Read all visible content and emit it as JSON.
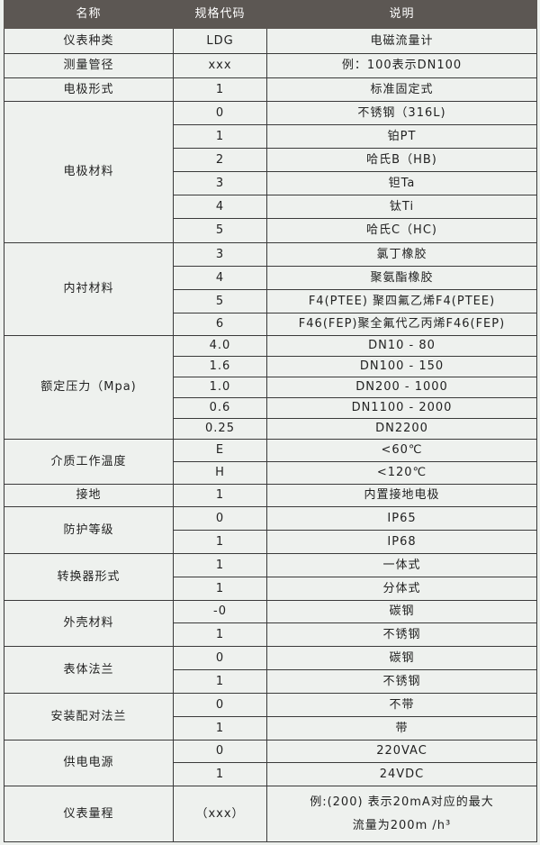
{
  "header": {
    "name": "名称",
    "code": "规格代码",
    "desc": "说明"
  },
  "colors": {
    "header_bg": "#5c5753",
    "header_text": "#ffffff",
    "background": "#eef1ee",
    "border": "#3a3a3a"
  },
  "groups": [
    {
      "name": "仪表种类",
      "rows": [
        {
          "code": "LDG",
          "desc": [
            "电磁流量计"
          ]
        }
      ]
    },
    {
      "name": "测量管径",
      "rows": [
        {
          "code": "xxx",
          "desc": [
            "例：100表示DN100"
          ]
        }
      ]
    },
    {
      "name": "电极形式",
      "rows": [
        {
          "code": "1",
          "desc": [
            "标准固定式"
          ]
        }
      ]
    },
    {
      "name": "电极材料",
      "rows": [
        {
          "code": "0",
          "desc": [
            "不锈钢（316L)"
          ]
        },
        {
          "code": "1",
          "desc": [
            "铂PT"
          ]
        },
        {
          "code": "2",
          "desc": [
            "哈氏B（HB)"
          ]
        },
        {
          "code": "3",
          "desc": [
            "钽Ta"
          ]
        },
        {
          "code": "4",
          "desc": [
            "钛Ti"
          ]
        },
        {
          "code": "5",
          "desc": [
            "哈氏C（HC)"
          ]
        }
      ]
    },
    {
      "name": "内衬材料",
      "rows": [
        {
          "code": "3",
          "desc": [
            "氯丁橡胶"
          ]
        },
        {
          "code": "4",
          "desc": [
            "聚氨酯橡胶"
          ]
        },
        {
          "code": "5",
          "desc": [
            "F4(PTEE) 聚四氟乙烯F4(PTEE)"
          ]
        },
        {
          "code": "6",
          "desc": [
            "F46(FEP)聚全氟代乙丙烯F46(FEP)"
          ]
        }
      ]
    },
    {
      "name": "额定压力（Mpa)",
      "rows": [
        {
          "code": "4.0",
          "desc": [
            "DN10 - 80"
          ]
        },
        {
          "code": "1.6",
          "desc": [
            "DN100 - 150"
          ]
        },
        {
          "code": "1.0",
          "desc": [
            "DN200 - 1000"
          ]
        },
        {
          "code": "0.6",
          "desc": [
            "DN1100 - 2000"
          ]
        },
        {
          "code": "0.25",
          "desc": [
            "DN2200"
          ]
        }
      ]
    },
    {
      "name": "介质工作温度",
      "rows": [
        {
          "code": "E",
          "desc": [
            "<60℃"
          ]
        },
        {
          "code": "H",
          "desc": [
            "<120℃"
          ]
        }
      ]
    },
    {
      "name": "接地",
      "rows": [
        {
          "code": "1",
          "desc": [
            "内置接地电极"
          ]
        }
      ]
    },
    {
      "name": "防护等级",
      "rows": [
        {
          "code": "0",
          "desc": [
            "IP65"
          ]
        },
        {
          "code": "1",
          "desc": [
            "IP68"
          ]
        }
      ]
    },
    {
      "name": "转换器形式",
      "rows": [
        {
          "code": "1",
          "desc": [
            "一体式"
          ]
        },
        {
          "code": "1",
          "desc": [
            "分体式"
          ]
        }
      ]
    },
    {
      "name": "外壳材料",
      "rows": [
        {
          "code": "-0",
          "desc": [
            "碳钢"
          ]
        },
        {
          "code": "1",
          "desc": [
            "不锈钢"
          ]
        }
      ]
    },
    {
      "name": "表体法兰",
      "rows": [
        {
          "code": "0",
          "desc": [
            "碳钢"
          ]
        },
        {
          "code": "1",
          "desc": [
            "不锈钢"
          ]
        }
      ]
    },
    {
      "name": "安装配对法兰",
      "rows": [
        {
          "code": "0",
          "desc": [
            "不带"
          ]
        },
        {
          "code": "1",
          "desc": [
            "带"
          ]
        }
      ]
    },
    {
      "name": "供电电源",
      "rows": [
        {
          "code": "0",
          "desc": [
            "220VAC"
          ]
        },
        {
          "code": "1",
          "desc": [
            "24VDC"
          ]
        }
      ]
    },
    {
      "name": "仪表量程",
      "rows": [
        {
          "code": "（xxx）",
          "desc": [
            "例:(200) 表示20mA对应的最大",
            "流量为200m /h³"
          ]
        }
      ]
    }
  ]
}
